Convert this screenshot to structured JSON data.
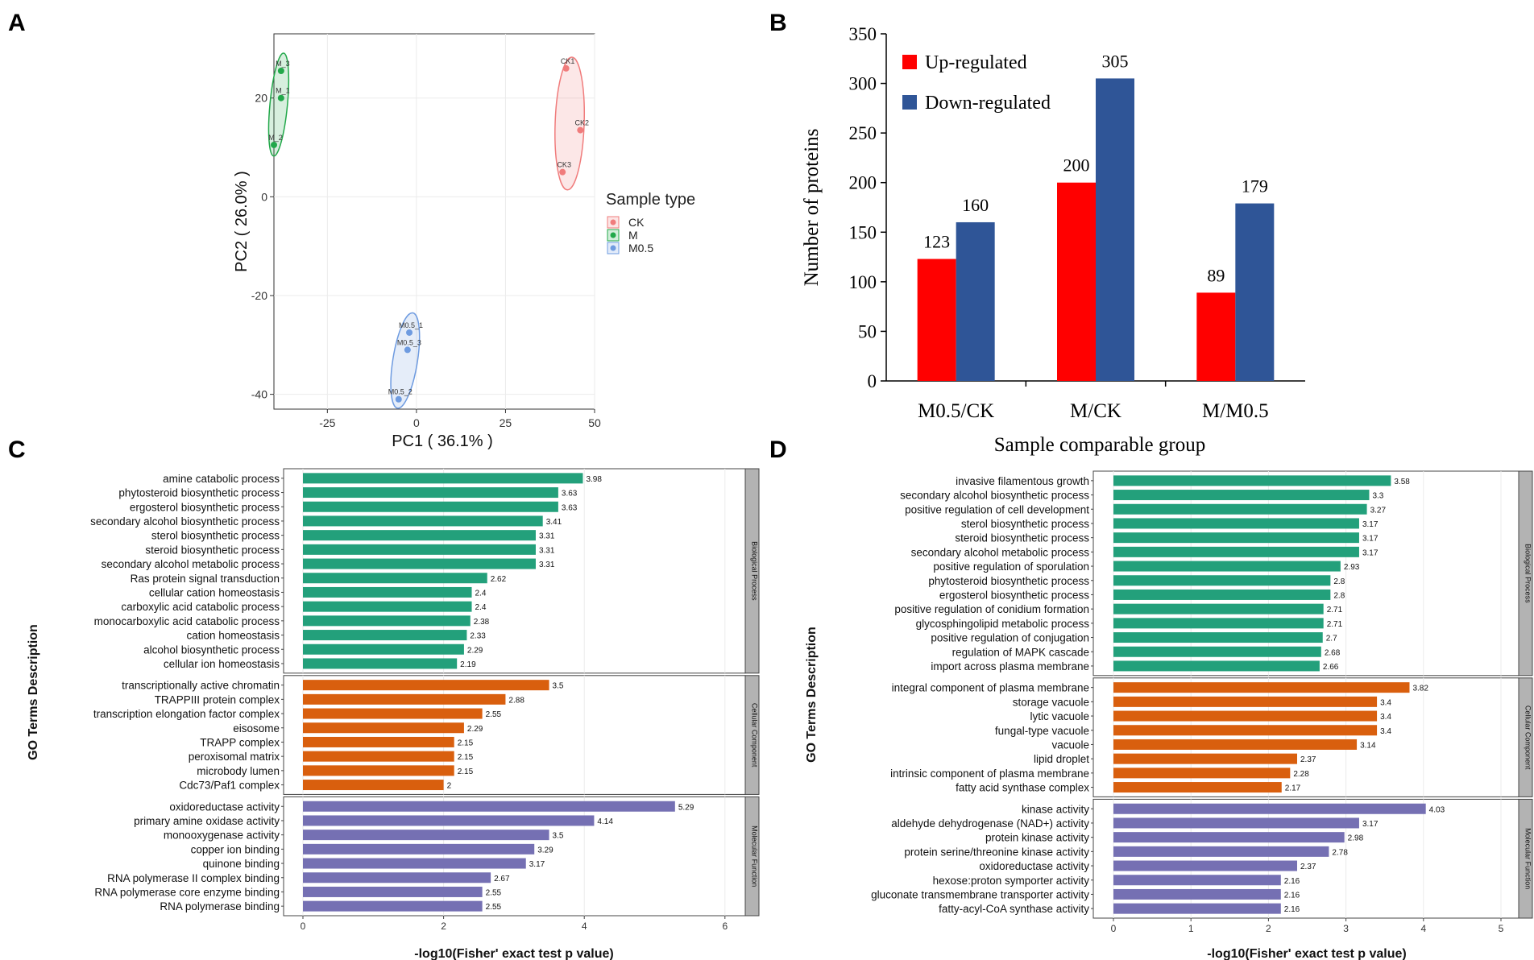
{
  "panel_labels": {
    "a": "A",
    "b": "B",
    "c": "C",
    "d": "D"
  },
  "chart_data": [
    {
      "id": "A",
      "type": "scatter",
      "xlabel": "PC1 ( 36.1% )",
      "ylabel": "PC2 ( 26.0% )",
      "xlim": [
        -40,
        50
      ],
      "ylim": [
        -43,
        33
      ],
      "xticks": [
        -25,
        0,
        25,
        50
      ],
      "yticks": [
        -40,
        -20,
        0,
        20
      ],
      "legend": {
        "title": "Sample type",
        "position": "right"
      },
      "series": [
        {
          "name": "CK",
          "color": "#f07c7c",
          "points": [
            {
              "label": "CK1",
              "x": 42,
              "y": 26
            },
            {
              "label": "CK2",
              "x": 46,
              "y": 13.5
            },
            {
              "label": "CK3",
              "x": 41,
              "y": 5
            }
          ]
        },
        {
          "name": "M",
          "color": "#22a84a",
          "points": [
            {
              "label": "M_3",
              "x": -38,
              "y": 25.5
            },
            {
              "label": "M_1",
              "x": -38,
              "y": 20
            },
            {
              "label": "M_2",
              "x": -40,
              "y": 10.5
            }
          ]
        },
        {
          "name": "M0.5",
          "color": "#6e9be0",
          "points": [
            {
              "label": "M0.5_1",
              "x": -2,
              "y": -27.5
            },
            {
              "label": "M0.5_3",
              "x": -2.5,
              "y": -31
            },
            {
              "label": "M0.5_2",
              "x": -5,
              "y": -41
            }
          ]
        }
      ]
    },
    {
      "id": "B",
      "type": "bar",
      "categories": [
        "M0.5/CK",
        "M/CK",
        "M/M0.5"
      ],
      "series": [
        {
          "name": "Up-regulated",
          "color": "#ff0000",
          "values": [
            123,
            200,
            89
          ]
        },
        {
          "name": "Down-regulated",
          "color": "#2f5597",
          "values": [
            160,
            305,
            179
          ]
        }
      ],
      "xlabel": "Sample comparable group",
      "ylabel": "Number of proteins",
      "ylim": [
        0,
        350
      ],
      "yticks": [
        0,
        50,
        100,
        150,
        200,
        250,
        300,
        350
      ],
      "legend": "top-left"
    },
    {
      "id": "C",
      "type": "bar",
      "orientation": "horizontal",
      "xlabel": "-log10(Fisher' exact test p value)",
      "ylabel": "GO Terms Description",
      "xlim": [
        0,
        6.5
      ],
      "xticks": [
        0,
        2,
        4,
        6
      ],
      "groups": [
        {
          "name": "Biological Process",
          "color": "#23a07b",
          "terms": [
            "amine catabolic process",
            "phytosteroid biosynthetic process",
            "ergosterol biosynthetic process",
            "secondary alcohol biosynthetic process",
            "sterol biosynthetic process",
            "steroid biosynthetic process",
            "secondary alcohol metabolic process",
            "Ras protein signal transduction",
            "cellular cation homeostasis",
            "carboxylic acid catabolic process",
            "monocarboxylic acid catabolic process",
            "cation homeostasis",
            "alcohol biosynthetic process",
            "cellular ion homeostasis"
          ],
          "values": [
            3.98,
            3.63,
            3.63,
            3.41,
            3.31,
            3.31,
            3.31,
            2.62,
            2.4,
            2.4,
            2.38,
            2.33,
            2.29,
            2.19
          ]
        },
        {
          "name": "Cellular Component",
          "color": "#d95f0e",
          "terms": [
            "transcriptionally active chromatin",
            "TRAPPIII protein complex",
            "transcription elongation factor complex",
            "eisosome",
            "TRAPP complex",
            "peroxisomal matrix",
            "microbody lumen",
            "Cdc73/Paf1 complex"
          ],
          "values": [
            3.5,
            2.88,
            2.55,
            2.29,
            2.15,
            2.15,
            2.15,
            2
          ]
        },
        {
          "name": "Molecular Function",
          "color": "#7570b3",
          "terms": [
            "oxidoreductase activity",
            "primary amine oxidase activity",
            "monooxygenase activity",
            "copper ion binding",
            "quinone binding",
            "RNA polymerase II complex binding",
            "RNA polymerase core enzyme binding",
            "RNA polymerase binding"
          ],
          "values": [
            5.29,
            4.14,
            3.5,
            3.29,
            3.17,
            2.67,
            2.55,
            2.55
          ]
        }
      ]
    },
    {
      "id": "D",
      "type": "bar",
      "orientation": "horizontal",
      "xlabel": "-log10(Fisher' exact test p value)",
      "ylabel": "GO Terms Description",
      "xlim": [
        0,
        5.3
      ],
      "xticks": [
        0,
        1,
        2,
        3,
        4,
        5
      ],
      "groups": [
        {
          "name": "Biological Process",
          "color": "#23a07b",
          "terms": [
            "invasive filamentous growth",
            "secondary alcohol biosynthetic process",
            "positive regulation of cell development",
            "sterol biosynthetic process",
            "steroid biosynthetic process",
            "secondary alcohol metabolic process",
            "positive regulation of sporulation",
            "phytosteroid biosynthetic process",
            "ergosterol biosynthetic process",
            "positive regulation of conidium formation",
            "glycosphingolipid metabolic process",
            "positive regulation of conjugation",
            "regulation of MAPK cascade",
            "import across plasma membrane"
          ],
          "values": [
            3.58,
            3.3,
            3.27,
            3.17,
            3.17,
            3.17,
            2.93,
            2.8,
            2.8,
            2.71,
            2.71,
            2.7,
            2.68,
            2.66
          ]
        },
        {
          "name": "Cellular Component",
          "color": "#d95f0e",
          "terms": [
            "integral component of plasma membrane",
            "storage vacuole",
            "lytic vacuole",
            "fungal-type vacuole",
            "vacuole",
            "lipid droplet",
            "intrinsic component of plasma membrane",
            "fatty acid synthase complex"
          ],
          "values": [
            3.82,
            3.4,
            3.4,
            3.4,
            3.14,
            2.37,
            2.28,
            2.17
          ]
        },
        {
          "name": "Molecular Function",
          "color": "#7570b3",
          "terms": [
            "kinase activity",
            "aldehyde dehydrogenase (NAD+) activity",
            "protein kinase activity",
            "protein serine/threonine kinase activity",
            "oxidoreductase activity",
            "hexose:proton symporter activity",
            "gluconate transmembrane transporter activity",
            "fatty-acyl-CoA synthase activity"
          ],
          "values": [
            4.03,
            3.17,
            2.98,
            2.78,
            2.37,
            2.16,
            2.16,
            2.16
          ]
        }
      ]
    }
  ]
}
